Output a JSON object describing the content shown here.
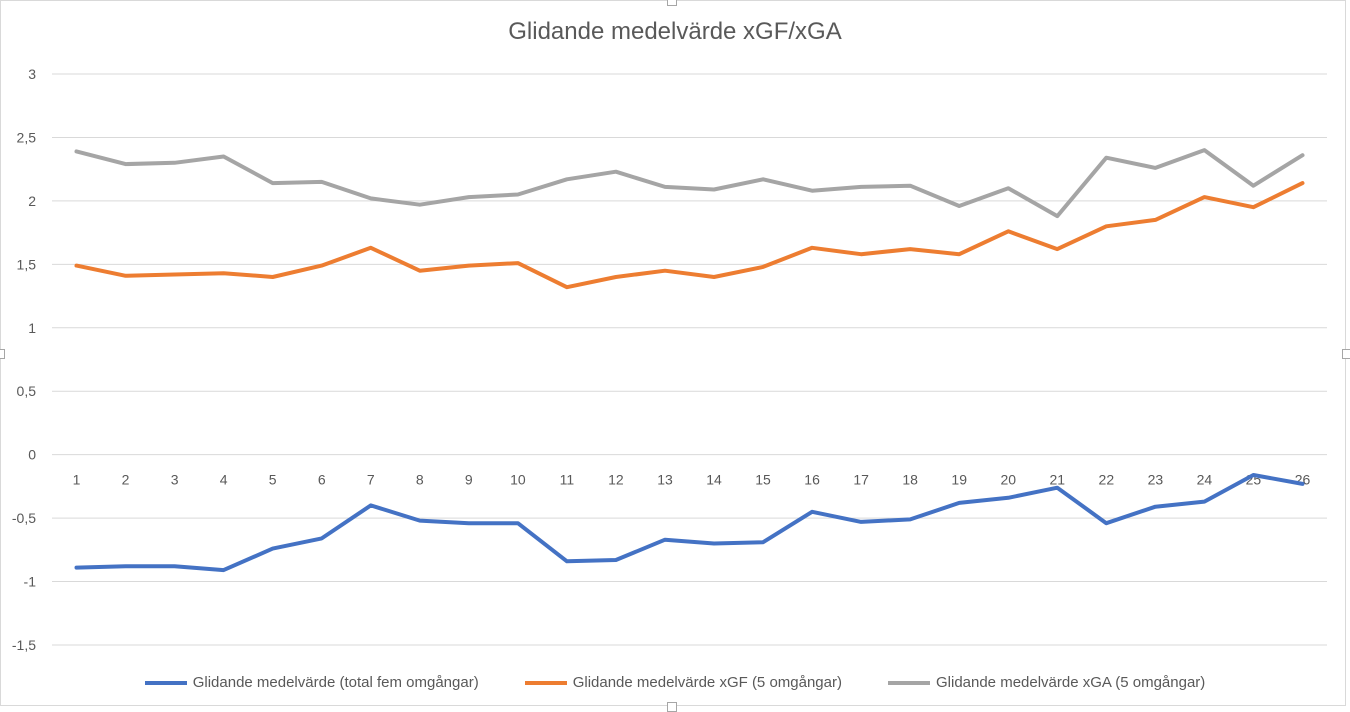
{
  "chart_data": {
    "type": "line",
    "title": "Glidande medelvärde xGF/xGA",
    "xlabel": "",
    "ylabel": "",
    "ylim": [
      -1.5,
      3
    ],
    "yticks": [
      3,
      2.5,
      2,
      1.5,
      1,
      0.5,
      0,
      -0.5,
      -1,
      -1.5
    ],
    "ytick_labels": [
      "3",
      "2,5",
      "2",
      "1,5",
      "1",
      "0,5",
      "0",
      "-0,5",
      "-1",
      "-1,5"
    ],
    "categories": [
      "1",
      "2",
      "3",
      "4",
      "5",
      "6",
      "7",
      "8",
      "9",
      "10",
      "11",
      "12",
      "13",
      "14",
      "15",
      "16",
      "17",
      "18",
      "19",
      "20",
      "21",
      "22",
      "23",
      "24",
      "25",
      "26"
    ],
    "grid": true,
    "legend_position": "bottom",
    "series": [
      {
        "name": "Glidande medelvärde (total fem omgångar)",
        "color": "#4472c4",
        "values": [
          -0.89,
          -0.88,
          -0.88,
          -0.91,
          -0.74,
          -0.66,
          -0.4,
          -0.52,
          -0.54,
          -0.54,
          -0.84,
          -0.83,
          -0.67,
          -0.7,
          -0.69,
          -0.45,
          -0.53,
          -0.51,
          -0.38,
          -0.34,
          -0.26,
          -0.54,
          -0.41,
          -0.37,
          -0.16,
          -0.23
        ]
      },
      {
        "name": "Glidande medelvärde xGF (5 omgångar)",
        "color": "#ed7d31",
        "values": [
          1.49,
          1.41,
          1.42,
          1.43,
          1.4,
          1.49,
          1.63,
          1.45,
          1.49,
          1.51,
          1.32,
          1.4,
          1.45,
          1.4,
          1.48,
          1.63,
          1.58,
          1.62,
          1.58,
          1.76,
          1.62,
          1.8,
          1.85,
          2.03,
          1.95,
          2.14
        ]
      },
      {
        "name": "Glidande medelvärde xGA (5 omgångar)",
        "color": "#a5a5a5",
        "values": [
          2.39,
          2.29,
          2.3,
          2.35,
          2.14,
          2.15,
          2.02,
          1.97,
          2.03,
          2.05,
          2.17,
          2.23,
          2.11,
          2.09,
          2.17,
          2.08,
          2.11,
          2.12,
          1.96,
          2.1,
          1.88,
          2.34,
          2.26,
          2.4,
          2.12,
          2.36
        ]
      }
    ]
  }
}
